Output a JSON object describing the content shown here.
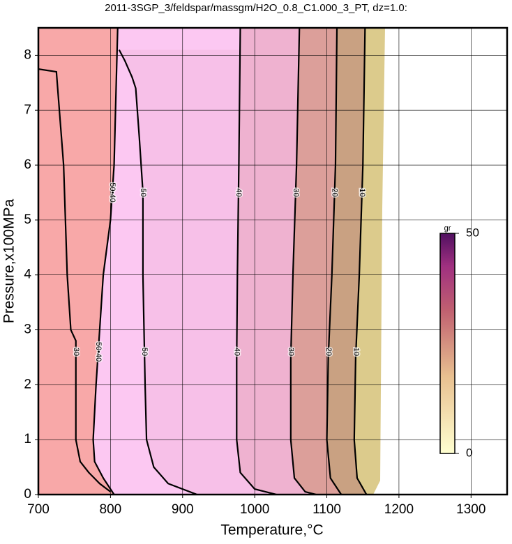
{
  "chart_data": {
    "type": "contour",
    "title": "2011-3SGP_3/feldspar/massgm/H2O_0.8_C1.000_3_PT, dz=1.0:",
    "xlabel": "Temperature,°C",
    "ylabel": "Pressure,x100MPa",
    "xlim": [
      700,
      1350
    ],
    "ylim": [
      0,
      8.5
    ],
    "xticks": [
      700,
      800,
      900,
      1000,
      1100,
      1200,
      1300
    ],
    "yticks": [
      0,
      1,
      2,
      3,
      4,
      5,
      6,
      7,
      8
    ],
    "grid": true,
    "series": [
      {
        "name": "30",
        "x": [
          700,
          725,
          735,
          740,
          745,
          752,
          752,
          758,
          770,
          785,
          800
        ],
        "y": [
          7.75,
          7.7,
          6,
          4,
          3.0,
          2.8,
          1,
          0.6,
          0.4,
          0.2,
          0.05
        ]
      },
      {
        "name": "50•40",
        "fill": "#fcc8f2",
        "x": [
          810,
          808,
          805,
          800,
          790,
          785,
          780,
          776,
          778,
          790,
          800,
          805
        ],
        "y": [
          8.5,
          7.5,
          6,
          5,
          4,
          3,
          2,
          1,
          0.6,
          0.3,
          0.1,
          0
        ]
      },
      {
        "name": "50",
        "fill": "#f7c0e8",
        "x": [
          812,
          820,
          830,
          835,
          840,
          845,
          845,
          848,
          850,
          860,
          880,
          920
        ],
        "y": [
          8.1,
          7.9,
          7.6,
          7.4,
          6.5,
          5.5,
          4,
          2,
          1,
          0.5,
          0.2,
          0
        ]
      },
      {
        "name": "40",
        "fill": "#efb2d0",
        "x": [
          980,
          978,
          976,
          975,
          975,
          980,
          1000,
          1030
        ],
        "y": [
          8.5,
          6,
          4,
          2.5,
          1,
          0.4,
          0.1,
          0
        ]
      },
      {
        "name": "30",
        "fill": "#dc9f9a",
        "x": [
          1062,
          1058,
          1053,
          1050,
          1050,
          1055,
          1070,
          1085
        ],
        "y": [
          8.5,
          6,
          4,
          2.5,
          1,
          0.3,
          0.05,
          0
        ]
      },
      {
        "name": "20",
        "fill": "#c9a182",
        "x": [
          1114,
          1112,
          1107,
          1102,
          1100,
          1105,
          1120
        ],
        "y": [
          8.5,
          6,
          4,
          2.5,
          1,
          0.3,
          0
        ]
      },
      {
        "name": "10",
        "fill": "#dccb8c",
        "x": [
          1153,
          1150,
          1145,
          1140,
          1138,
          1142,
          1155
        ],
        "y": [
          8.5,
          6,
          4,
          2.5,
          1,
          0.3,
          0
        ]
      }
    ],
    "colorbar": {
      "label": "gr",
      "lim": [
        0,
        50
      ],
      "ticks": [
        0,
        50
      ]
    }
  }
}
